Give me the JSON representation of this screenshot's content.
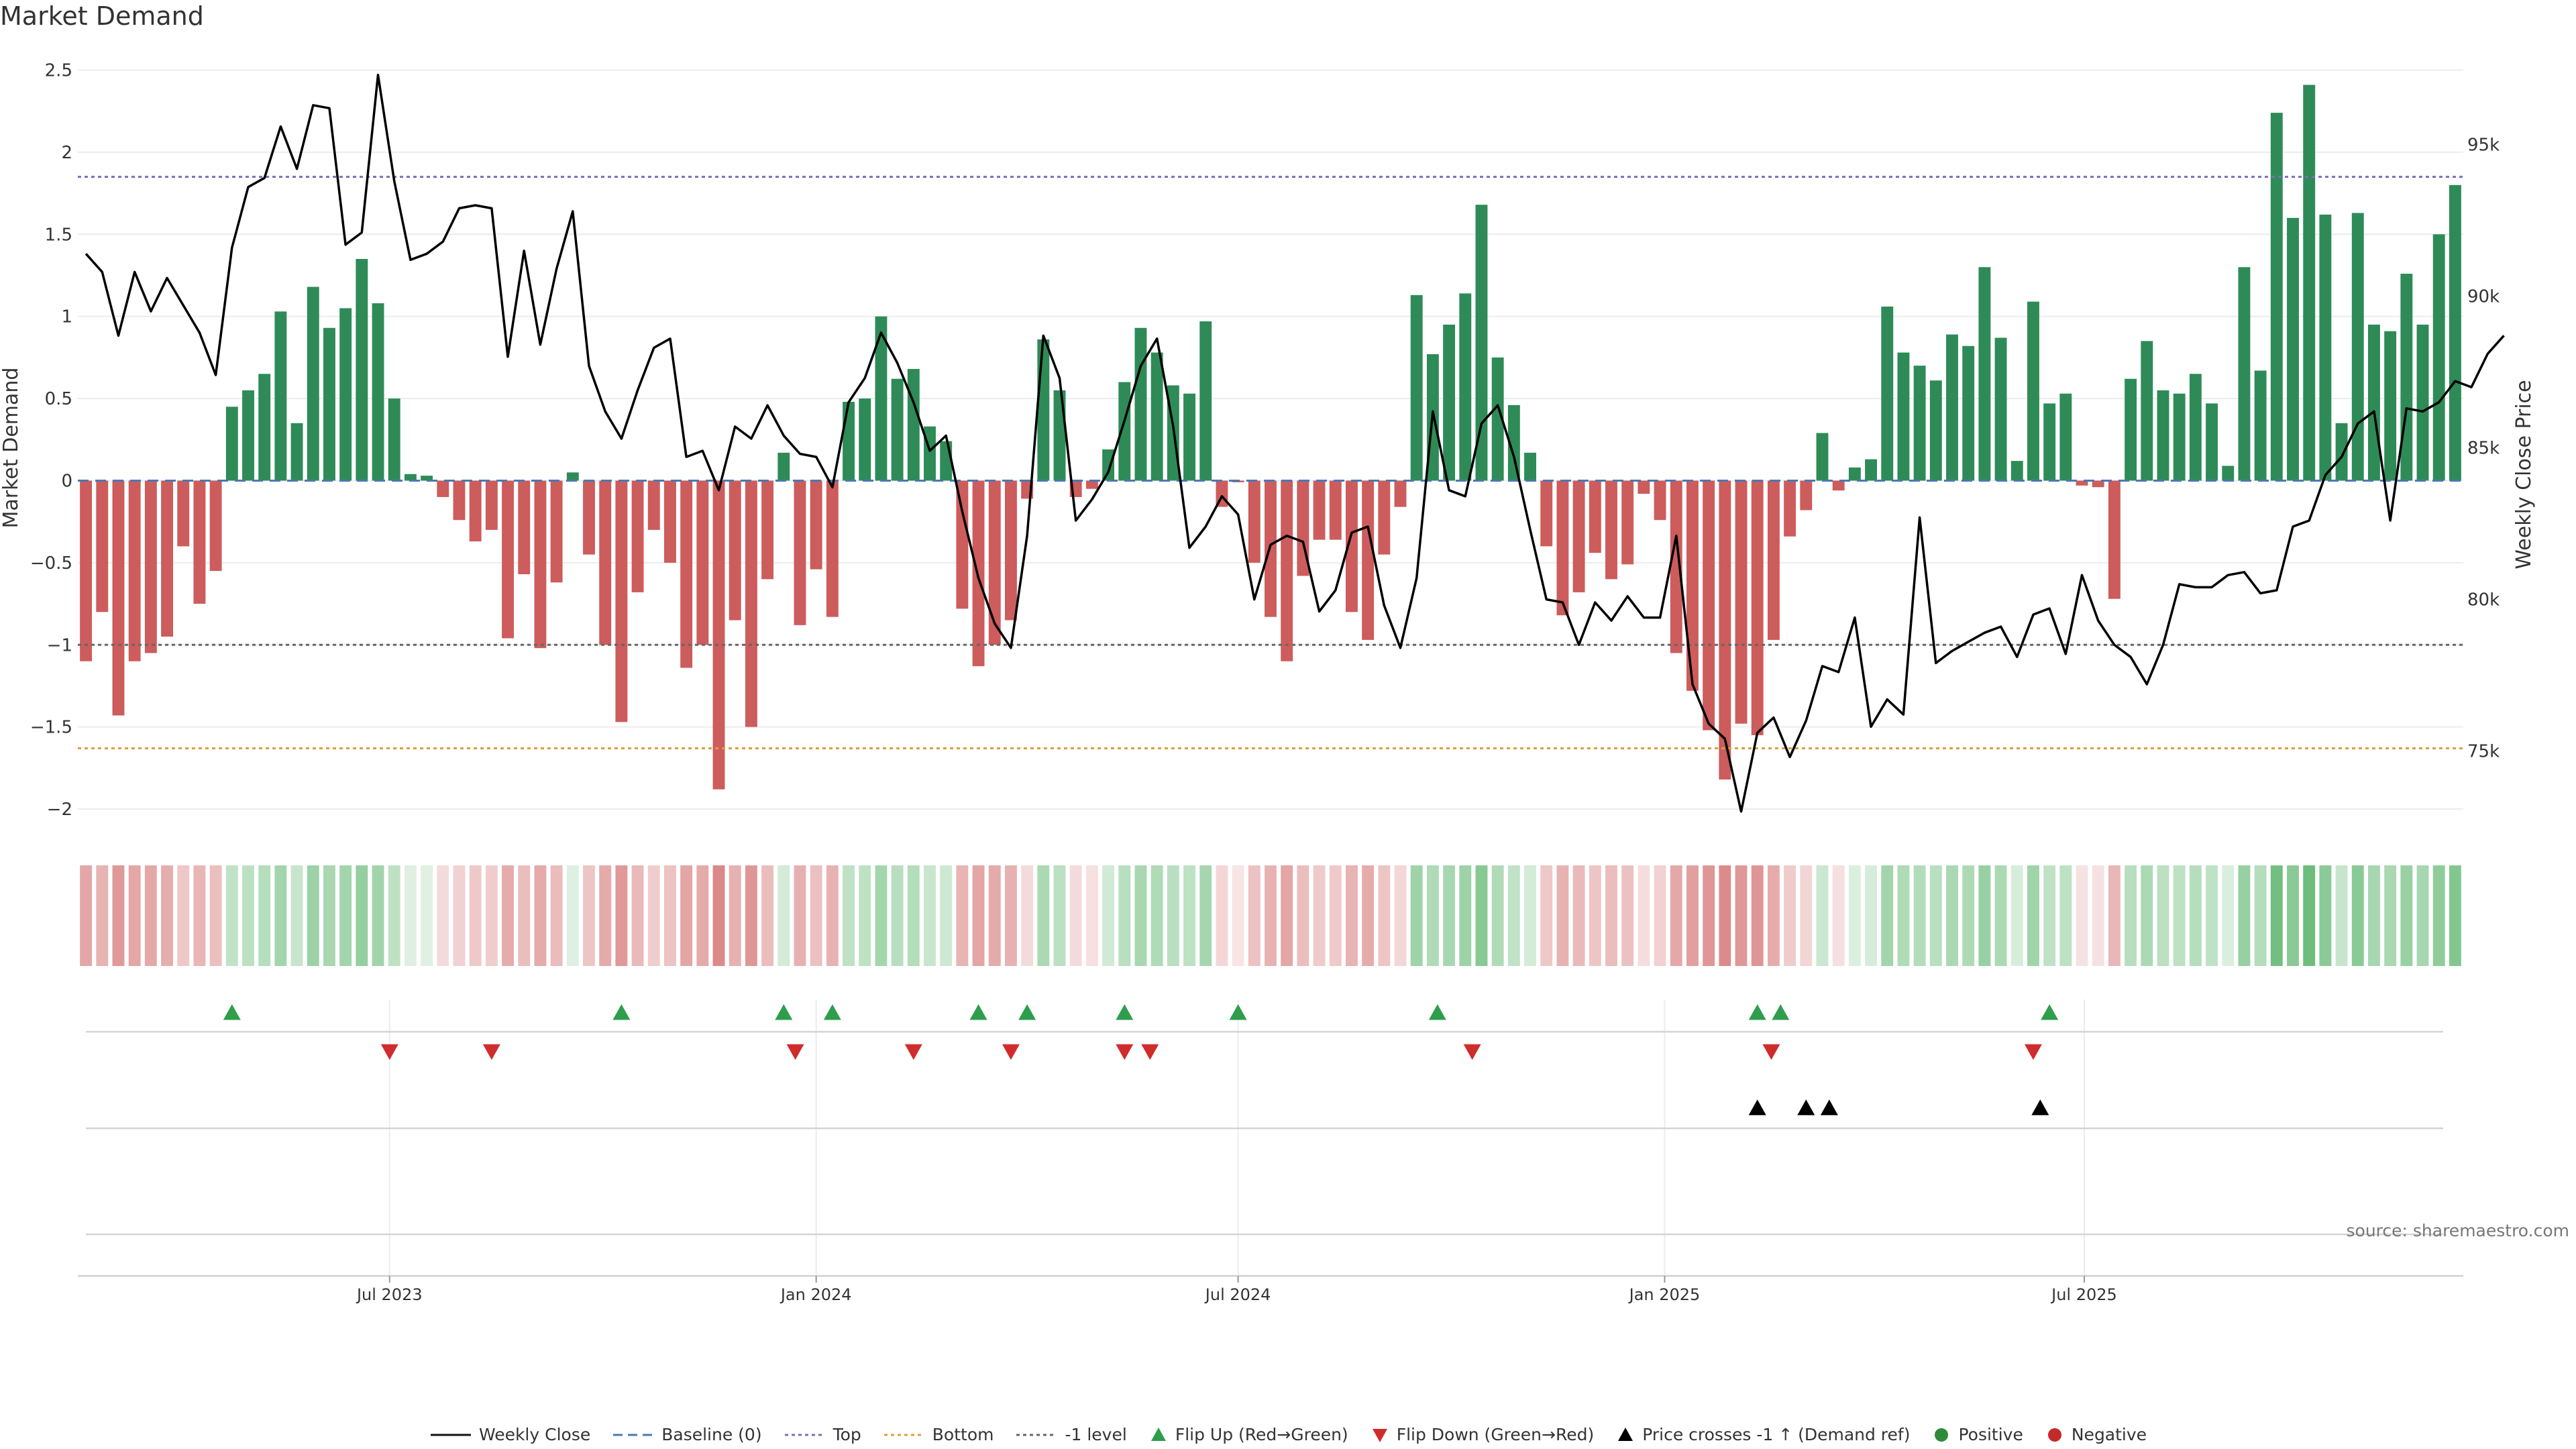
{
  "title": "Market Demand",
  "source": "source: sharemaestro.com",
  "legend": [
    {
      "label": "Weekly Close",
      "symbol": "line-solid",
      "color": "#111111"
    },
    {
      "label": "Baseline (0)",
      "symbol": "line-dash",
      "color": "#4a78b5"
    },
    {
      "label": "Top",
      "symbol": "line-dot",
      "color": "#7a6fb8"
    },
    {
      "label": "Bottom",
      "symbol": "line-dot",
      "color": "#d9a03c"
    },
    {
      "label": "-1 level",
      "symbol": "line-dot",
      "color": "#666666"
    },
    {
      "label": "Flip Up (Red→Green)",
      "symbol": "tri-up",
      "color": "#2e9e4c"
    },
    {
      "label": "Flip Down (Green→Red)",
      "symbol": "tri-down",
      "color": "#d02c2c"
    },
    {
      "label": "Price crosses -1 ↑ (Demand ref)",
      "symbol": "tri-up",
      "color": "#000000"
    },
    {
      "label": "Positive",
      "symbol": "dot",
      "color": "#2e8b3a"
    },
    {
      "label": "Negative",
      "symbol": "dot",
      "color": "#c42a2a"
    }
  ],
  "chart_data": {
    "type": "bar",
    "ylabel": "Market Demand",
    "y2label": "Weekly Close Price",
    "ylim": [
      -2.2,
      2.6
    ],
    "y2lim": [
      72000,
      98000
    ],
    "y_ticks": [
      2.5,
      2,
      1.5,
      1,
      0.5,
      0,
      -0.5,
      -1,
      -1.5,
      -2
    ],
    "y_tick_labels": [
      "2.5",
      "2",
      "1.5",
      "1",
      "0.5",
      "0",
      "−0.5",
      "−1",
      "−1.5",
      "−2"
    ],
    "y2_ticks": [
      95000,
      90000,
      85000,
      80000,
      75000
    ],
    "y2_tick_labels": [
      "95k",
      "90k",
      "85k",
      "80k",
      "75k"
    ],
    "x_start": "2023-02-20",
    "week_step_days": 7,
    "x_ticks": [
      {
        "date": "2023-07-01",
        "label": "Jul 2023"
      },
      {
        "date": "2024-01-01",
        "label": "Jan 2024"
      },
      {
        "date": "2024-07-01",
        "label": "Jul 2024"
      },
      {
        "date": "2025-01-01",
        "label": "Jan 2025"
      },
      {
        "date": "2025-07-01",
        "label": "Jul 2025"
      }
    ],
    "reference_lines": {
      "top": 1.85,
      "bottom": -1.63,
      "minus_one": -1.0,
      "baseline": 0
    },
    "colors": {
      "positive": "#2e8b57",
      "negative": "#cd5c5c",
      "price": "#000000",
      "flip_up": "#2e9e4c",
      "flip_down": "#d02c2c",
      "cross": "#000000",
      "top": "#7a6fb8",
      "bottom": "#d9a03c",
      "minus_one": "#666666"
    },
    "demand": [
      -1.1,
      -0.8,
      -1.43,
      -1.1,
      -1.05,
      -0.95,
      -0.4,
      -0.75,
      -0.55,
      0.45,
      0.55,
      0.65,
      1.03,
      0.35,
      1.18,
      0.93,
      1.05,
      1.35,
      1.08,
      0.5,
      0.04,
      0.03,
      -0.1,
      -0.24,
      -0.37,
      -0.3,
      -0.96,
      -0.57,
      -1.02,
      -0.62,
      0.05,
      -0.45,
      -1.0,
      -1.47,
      -0.68,
      -0.3,
      -0.5,
      -1.14,
      -1.0,
      -1.88,
      -0.85,
      -1.5,
      -0.6,
      0.17,
      -0.88,
      -0.54,
      -0.83,
      0.48,
      0.5,
      1.0,
      0.62,
      0.68,
      0.33,
      0.24,
      -0.78,
      -1.13,
      -1.0,
      -0.85,
      -0.11,
      0.86,
      0.55,
      -0.1,
      -0.05,
      0.19,
      0.6,
      0.93,
      0.78,
      0.58,
      0.53,
      0.97,
      -0.16,
      -0.01,
      -0.5,
      -0.83,
      -1.1,
      -0.58,
      -0.36,
      -0.36,
      -0.8,
      -0.97,
      -0.45,
      -0.16,
      1.13,
      0.77,
      0.95,
      1.14,
      1.68,
      0.75,
      0.46,
      0.17,
      -0.4,
      -0.82,
      -0.68,
      -0.44,
      -0.6,
      -0.51,
      -0.08,
      -0.24,
      -1.05,
      -1.28,
      -1.52,
      -1.82,
      -1.48,
      -1.55,
      -0.97,
      -0.34,
      -0.18,
      0.29,
      -0.06,
      0.08,
      0.13,
      1.06,
      0.78,
      0.7,
      0.61,
      0.89,
      0.82,
      1.3,
      0.87,
      0.12,
      1.09,
      0.47,
      0.53,
      -0.03,
      -0.04,
      -0.72,
      0.62,
      0.85,
      0.55,
      0.53,
      0.65,
      0.47,
      0.09,
      1.3,
      0.67,
      2.24,
      1.6,
      2.41,
      1.62,
      0.35,
      1.63,
      0.95,
      0.91,
      1.26,
      0.95,
      1.5,
      1.8
    ],
    "weekly_close": [
      91400,
      90800,
      88700,
      90800,
      89500,
      90600,
      89700,
      88800,
      87400,
      91600,
      93600,
      93900,
      95600,
      94200,
      96300,
      96200,
      91700,
      92100,
      97300,
      93800,
      91200,
      91400,
      91800,
      92900,
      93000,
      92900,
      88000,
      91500,
      88400,
      90900,
      92800,
      87700,
      86200,
      85300,
      86900,
      88300,
      88600,
      84700,
      84900,
      83600,
      85700,
      85300,
      86400,
      85400,
      84800,
      84700,
      83700,
      86500,
      87300,
      88800,
      87800,
      86500,
      84900,
      85400,
      82900,
      80700,
      79200,
      78400,
      82100,
      88700,
      87300,
      82600,
      83300,
      84200,
      85900,
      87700,
      88600,
      85700,
      81700,
      82400,
      83400,
      82800,
      80000,
      81800,
      82100,
      81900,
      79600,
      80300,
      82200,
      82400,
      79800,
      78400,
      80700,
      86200,
      83600,
      83400,
      85800,
      86400,
      84700,
      82300,
      80000,
      79900,
      78500,
      79900,
      79300,
      80100,
      79400,
      79400,
      82100,
      77200,
      75900,
      75400,
      73000,
      75600,
      76100,
      74800,
      76000,
      77800,
      77600,
      79400,
      75800,
      76700,
      76200,
      82700,
      77900,
      78300,
      78600,
      78900,
      79100,
      78100,
      79500,
      79700,
      78200,
      80800,
      79300,
      78500,
      78100,
      77200,
      78500,
      80500,
      80400,
      80400,
      80800,
      80900,
      80200,
      80300,
      82400,
      82600,
      84100,
      84700,
      85800,
      86200,
      82600,
      86300,
      86200,
      86500,
      87200,
      87000,
      88100,
      88700
    ],
    "flip_up_dates": [
      "2023-04-24",
      "2024-09-25",
      "2023-10-09",
      "2023-12-18",
      "2024-01-08",
      "2024-03-11",
      "2024-04-01",
      "2024-05-13",
      "2024-07-01",
      "2025-02-10",
      "2025-02-20",
      "2025-06-16"
    ],
    "flip_down_dates": [
      "2023-07-01",
      "2023-08-14",
      "2023-12-23",
      "2024-02-12",
      "2024-03-25",
      "2024-05-13",
      "2024-05-24",
      "2024-10-10",
      "2025-02-16",
      "2025-06-09"
    ],
    "cross_dates": [
      "2025-02-10",
      "2025-03-03",
      "2025-03-13",
      "2025-06-12"
    ]
  }
}
